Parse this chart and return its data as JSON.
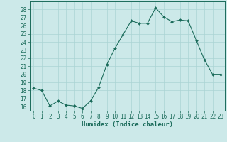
{
  "x": [
    0,
    1,
    2,
    3,
    4,
    5,
    6,
    7,
    8,
    9,
    10,
    11,
    12,
    13,
    14,
    15,
    16,
    17,
    18,
    19,
    20,
    21,
    22,
    23
  ],
  "y": [
    18.3,
    18.0,
    16.1,
    16.7,
    16.2,
    16.1,
    15.8,
    16.7,
    18.4,
    21.2,
    23.2,
    24.9,
    26.6,
    26.3,
    26.3,
    28.2,
    27.1,
    26.5,
    26.7,
    26.6,
    24.2,
    21.8,
    20.0,
    20.0
  ],
  "line_color": "#1a6b5a",
  "marker": "D",
  "marker_size": 2.0,
  "bg_color": "#cce9e9",
  "grid_color": "#aad4d4",
  "tick_color": "#1a6b5a",
  "xlabel": "Humidex (Indice chaleur)",
  "ylabel": "",
  "title": "",
  "ylim": [
    15.5,
    29.0
  ],
  "xlim": [
    -0.5,
    23.5
  ],
  "yticks": [
    16,
    17,
    18,
    19,
    20,
    21,
    22,
    23,
    24,
    25,
    26,
    27,
    28
  ],
  "xticks": [
    0,
    1,
    2,
    3,
    4,
    5,
    6,
    7,
    8,
    9,
    10,
    11,
    12,
    13,
    14,
    15,
    16,
    17,
    18,
    19,
    20,
    21,
    22,
    23
  ],
  "font_color": "#1a6b5a",
  "label_fontsize": 6.5,
  "tick_fontsize": 5.5
}
